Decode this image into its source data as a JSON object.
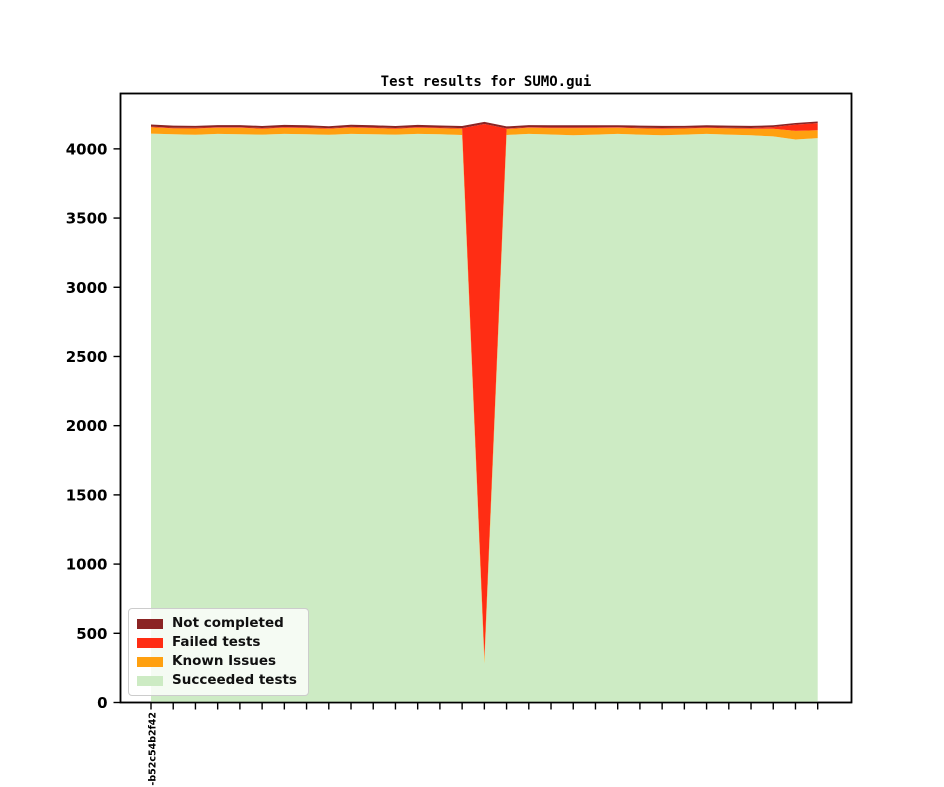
{
  "chart_data": {
    "type": "area",
    "stacked": true,
    "title": "Test results for SUMO.gui",
    "xlabel": "",
    "ylabel": "",
    "ylim": [
      0,
      4400
    ],
    "grid": false,
    "legend_position": "lower left",
    "y_ticks": [
      0,
      500,
      1000,
      1500,
      2000,
      2500,
      3000,
      3500,
      4000
    ],
    "x_tick_labels": [
      "-b52c54b2f42",
      "",
      "",
      "",
      "",
      "",
      "",
      "",
      "",
      "",
      "",
      "",
      "",
      "",
      "",
      "",
      "",
      "",
      "",
      "",
      "",
      "",
      "",
      "",
      "",
      "",
      "",
      "",
      "",
      "",
      ""
    ],
    "series": [
      {
        "name": "Succeeded tests",
        "color": "#cdebc4",
        "values": [
          4110,
          4105,
          4102,
          4108,
          4106,
          4103,
          4108,
          4106,
          4102,
          4108,
          4106,
          4103,
          4108,
          4105,
          4100,
          280,
          4100,
          4108,
          4104,
          4098,
          4103,
          4108,
          4103,
          4098,
          4103,
          4108,
          4103,
          4098,
          4090,
          4068,
          4078
        ]
      },
      {
        "name": "Known Issues",
        "color": "#ffa010",
        "values": [
          46,
          43,
          45,
          44,
          46,
          43,
          45,
          44,
          43,
          46,
          44,
          43,
          45,
          44,
          45,
          45,
          43,
          44,
          46,
          52,
          48,
          44,
          45,
          48,
          44,
          43,
          45,
          48,
          56,
          62,
          56
        ]
      },
      {
        "name": "Failed tests",
        "color": "#ff2d14",
        "values": [
          5,
          5,
          5,
          5,
          5,
          5,
          5,
          5,
          5,
          5,
          5,
          5,
          5,
          5,
          5,
          3855,
          5,
          5,
          5,
          5,
          5,
          5,
          5,
          5,
          5,
          5,
          5,
          5,
          12,
          45,
          52
        ]
      },
      {
        "name": "Not completed",
        "color": "#8b2424",
        "values": [
          15,
          15,
          14,
          15,
          15,
          14,
          15,
          15,
          14,
          15,
          15,
          14,
          15,
          15,
          15,
          15,
          14,
          15,
          15,
          15,
          15,
          14,
          15,
          15,
          14,
          15,
          15,
          15,
          12,
          12,
          12
        ]
      }
    ],
    "legend_order": [
      "Not completed",
      "Failed tests",
      "Known Issues",
      "Succeeded tests"
    ]
  }
}
